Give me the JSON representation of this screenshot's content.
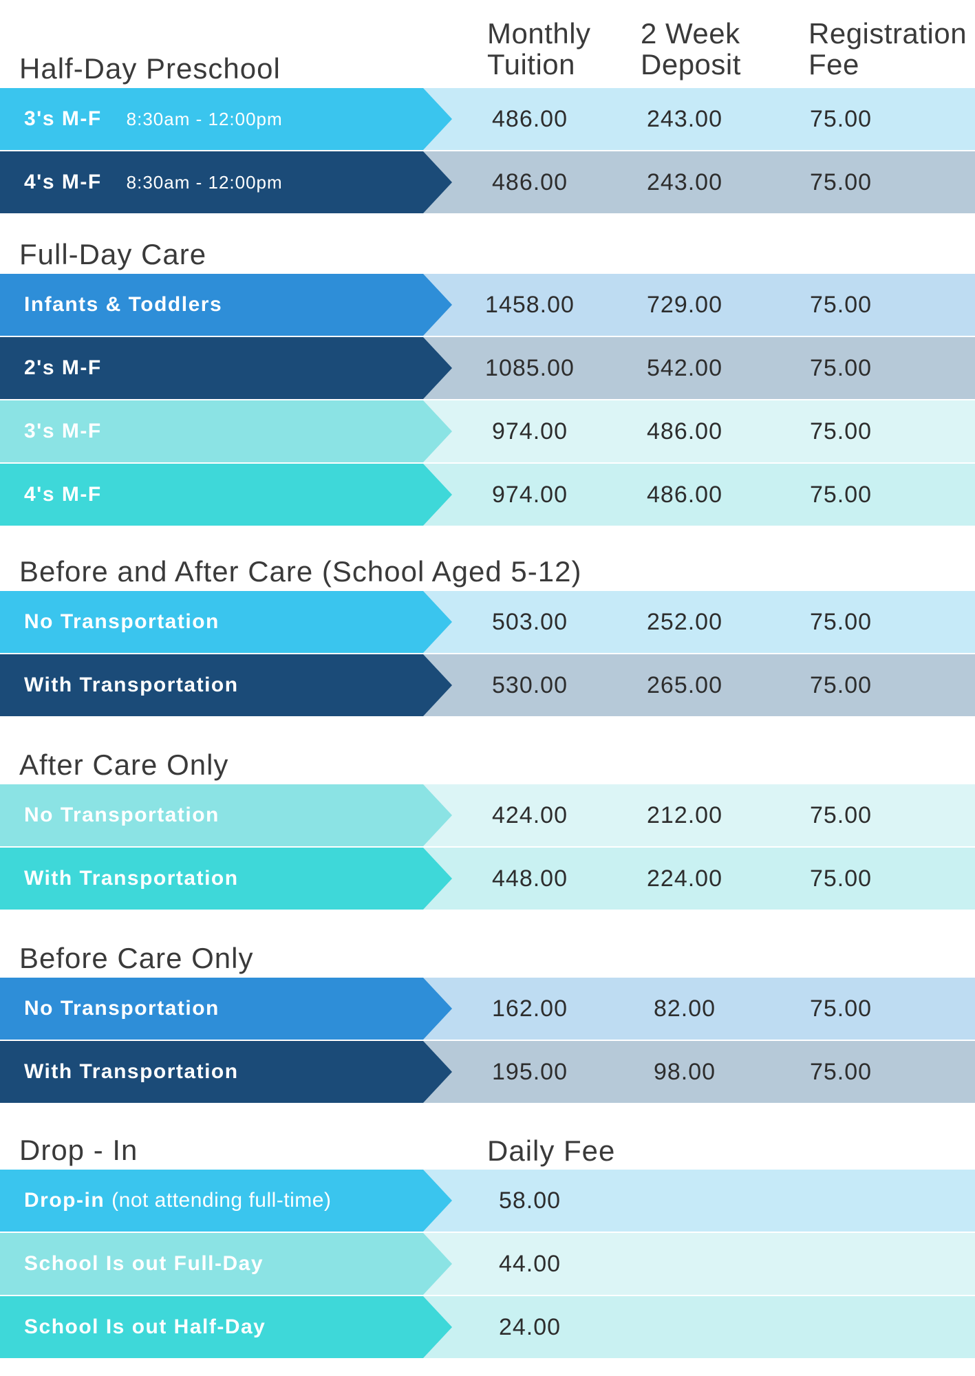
{
  "document_title": "Child care tuition pricing table",
  "columns": {
    "monthly": "Monthly Tuition",
    "deposit": "2 Week Deposit",
    "fee": "Registration Fee"
  },
  "palette": {
    "cyan": {
      "arrow": "#3AC5EE",
      "bg": "#C6EAF8"
    },
    "navy": {
      "arrow": "#1B4B78",
      "bg": "#B6C9D8"
    },
    "blue": {
      "arrow": "#2E8ED8",
      "bg": "#BEDCF2"
    },
    "paleTeal": {
      "arrow": "#8BE3E4",
      "bg": "#DCF5F6"
    },
    "teal": {
      "arrow": "#3ED8D9",
      "bg": "#C9F1F2"
    },
    "title_text": "#3a3a3a",
    "number_text": "#2d2d2d",
    "label_text": "#ffffff"
  },
  "sections": [
    {
      "title": "Half-Day Preschool",
      "rows": [
        {
          "label": "3's M-F",
          "time": "8:30am - 12:00pm",
          "style": "cyan",
          "values": [
            "486.00",
            "243.00",
            "75.00"
          ]
        },
        {
          "label": "4's M-F",
          "time": "8:30am - 12:00pm",
          "style": "navy",
          "values": [
            "486.00",
            "243.00",
            "75.00"
          ]
        }
      ]
    },
    {
      "title": "Full-Day Care",
      "rows": [
        {
          "label": "Infants & Toddlers",
          "style": "blue",
          "values": [
            "1458.00",
            "729.00",
            "75.00"
          ]
        },
        {
          "label": "2's M-F",
          "style": "navy",
          "values": [
            "1085.00",
            "542.00",
            "75.00"
          ]
        },
        {
          "label": "3's M-F",
          "style": "paleTeal",
          "values": [
            "974.00",
            "486.00",
            "75.00"
          ]
        },
        {
          "label": "4's M-F",
          "style": "teal",
          "values": [
            "974.00",
            "486.00",
            "75.00"
          ]
        }
      ]
    },
    {
      "title": "Before and After Care (School Aged 5-12)",
      "rows": [
        {
          "label": "No Transportation",
          "style": "cyan",
          "values": [
            "503.00",
            "252.00",
            "75.00"
          ]
        },
        {
          "label": "With Transportation",
          "style": "navy",
          "values": [
            "530.00",
            "265.00",
            "75.00"
          ]
        }
      ]
    },
    {
      "title": "After Care Only",
      "rows": [
        {
          "label": "No Transportation",
          "style": "paleTeal",
          "values": [
            "424.00",
            "212.00",
            "75.00"
          ]
        },
        {
          "label": "With Transportation",
          "style": "teal",
          "values": [
            "448.00",
            "224.00",
            "75.00"
          ]
        }
      ]
    },
    {
      "title": "Before Care Only",
      "rows": [
        {
          "label": "No Transportation",
          "style": "blue",
          "values": [
            "162.00",
            "82.00",
            "75.00"
          ]
        },
        {
          "label": "With Transportation",
          "style": "navy",
          "values": [
            "195.00",
            "98.00",
            "75.00"
          ]
        }
      ]
    },
    {
      "title": "Drop - In",
      "col_header": "Daily Fee",
      "rows": [
        {
          "label": "Drop-in",
          "note": "(not attending full-time)",
          "style": "cyan",
          "values": [
            "58.00"
          ]
        },
        {
          "label": "School Is out Full-Day",
          "style": "paleTeal",
          "values": [
            "44.00"
          ]
        },
        {
          "label": "School Is out Half-Day",
          "style": "teal",
          "values": [
            "24.00"
          ]
        }
      ]
    }
  ]
}
